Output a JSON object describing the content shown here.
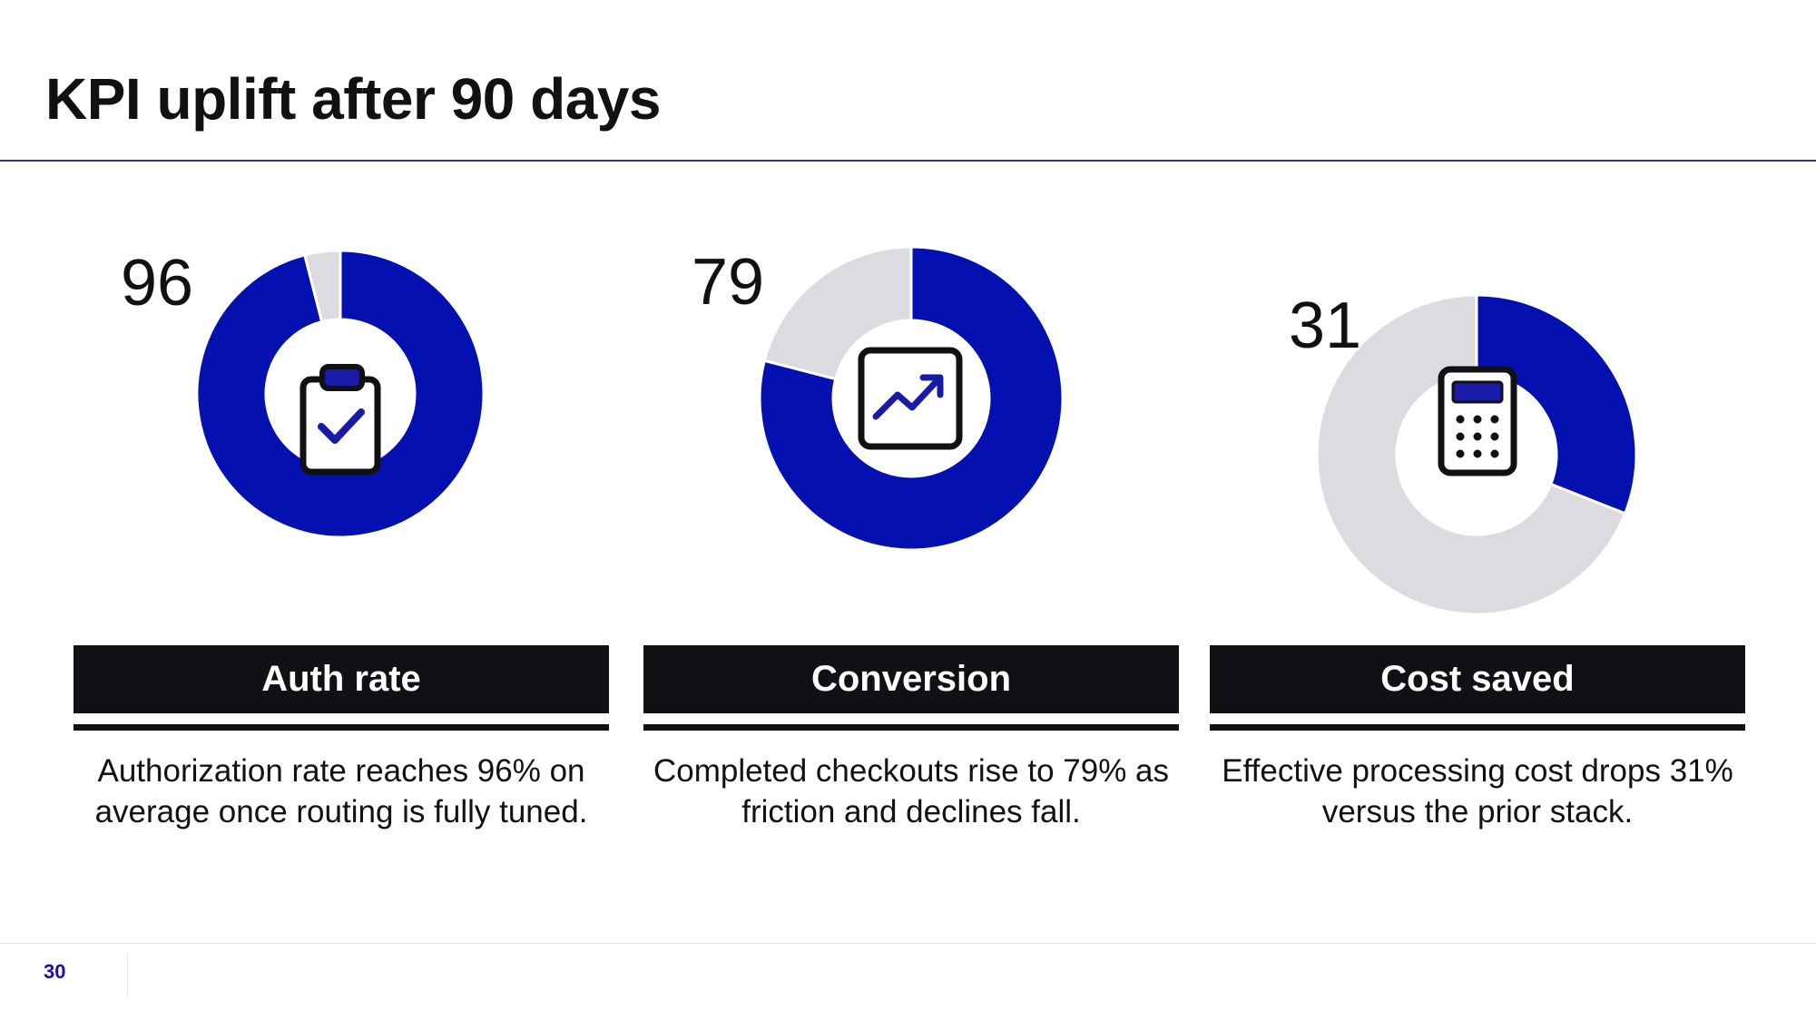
{
  "slide": {
    "title": "KPI uplift after 90 days",
    "page_number": "30"
  },
  "colors": {
    "filled": "#0510b0",
    "remainder": "#dcdbe0",
    "icon_stroke": "#111014",
    "icon_accent": "#1a1aa8"
  },
  "kpis": [
    {
      "value_label": "96",
      "label": "Auth rate",
      "description": "Authorization rate reaches 96% on average once routing is fully tuned.",
      "icon": "clipboard-check-icon"
    },
    {
      "value_label": "79",
      "label": "Conversion",
      "description": "Completed checkouts rise to 79% as friction and declines fall.",
      "icon": "trend-up-chart-icon"
    },
    {
      "value_label": "31",
      "label": "Cost saved",
      "description": "Effective processing cost drops 31% versus the prior stack.",
      "icon": "calculator-icon"
    }
  ],
  "chart_data": [
    {
      "type": "pie",
      "style": "donut",
      "value": 96,
      "max": 100
    },
    {
      "type": "pie",
      "style": "donut",
      "value": 79,
      "max": 100
    },
    {
      "type": "pie",
      "style": "donut",
      "value": 31,
      "max": 100
    }
  ]
}
